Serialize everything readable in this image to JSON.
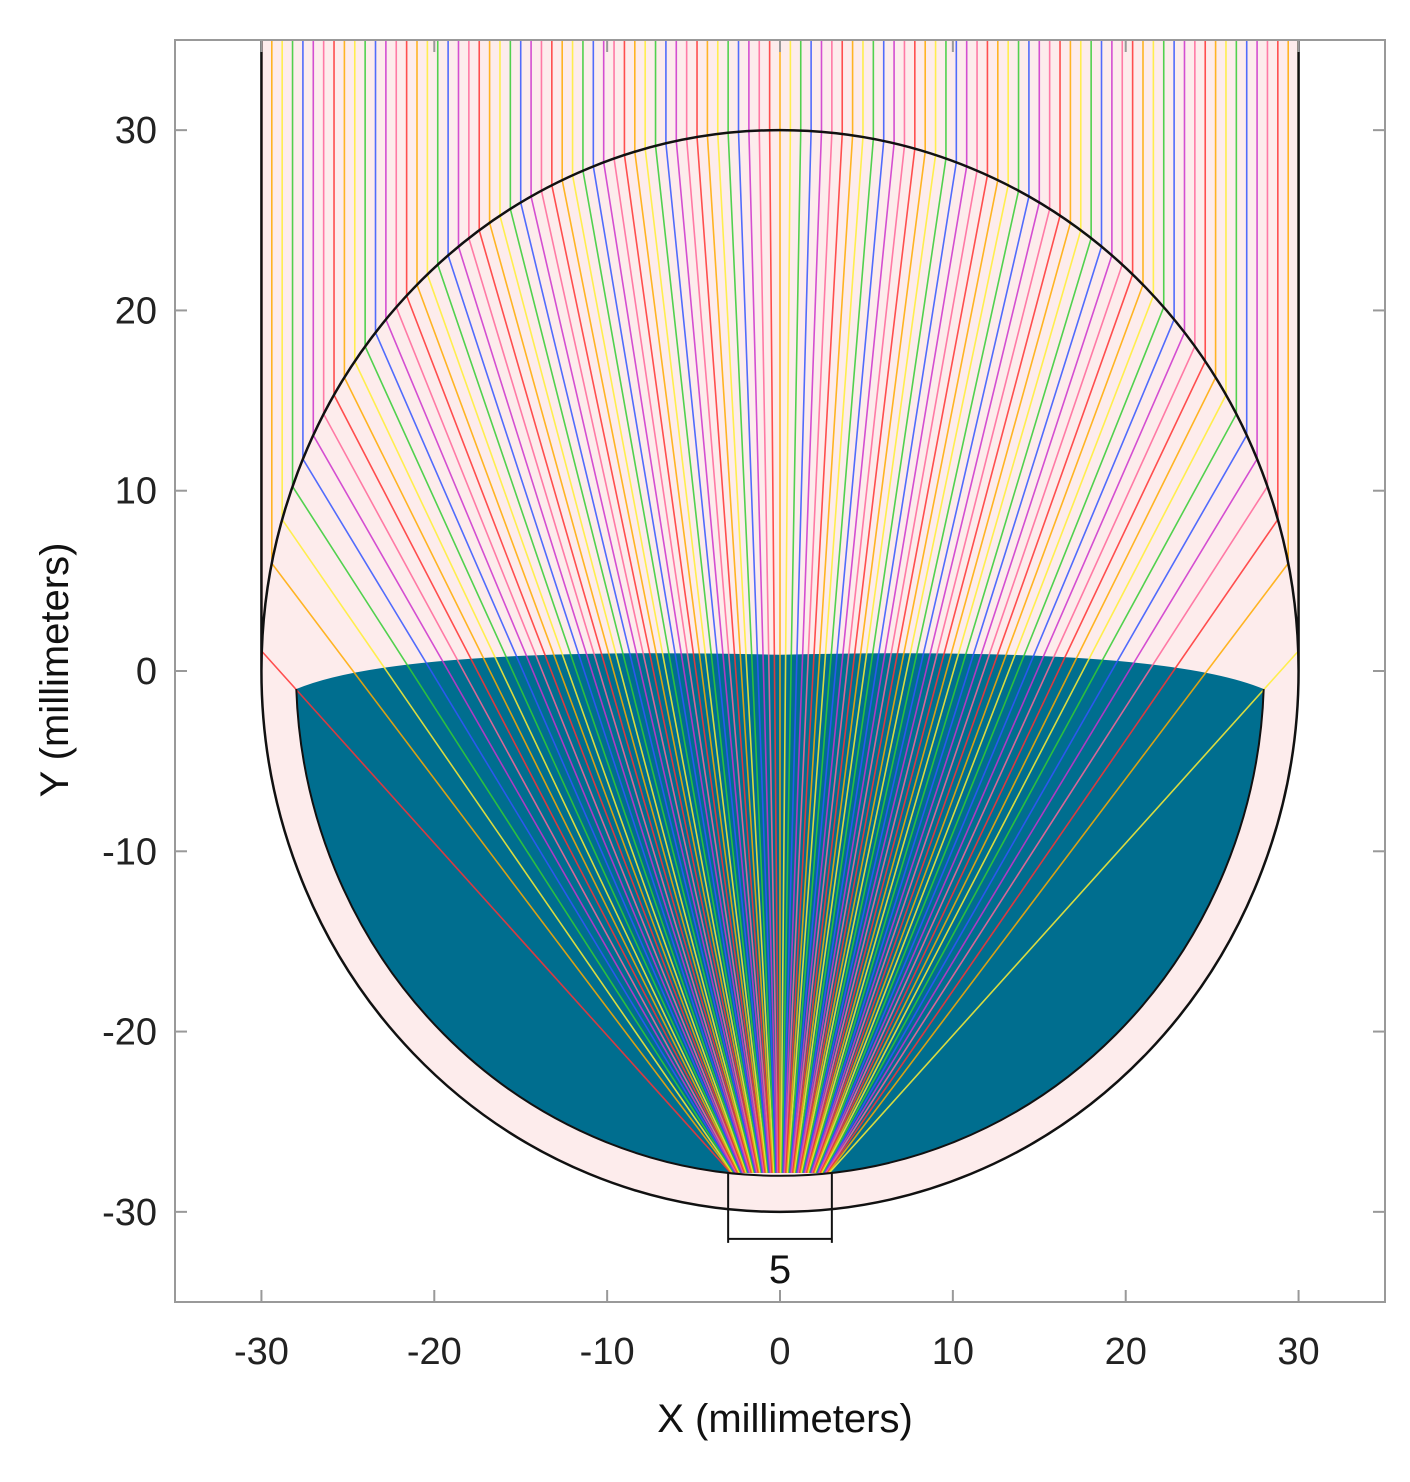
{
  "chart_data": {
    "type": "line",
    "title": "",
    "xlabel": "X (millimeters)",
    "ylabel": "Y (millimeters)",
    "xlim": [
      -35,
      35
    ],
    "ylim": [
      -35,
      35
    ],
    "x_ticks": [
      -30,
      -20,
      -10,
      0,
      10,
      20,
      30
    ],
    "y_ticks": [
      -30,
      -20,
      -10,
      0,
      10,
      20,
      30
    ],
    "x_tick_labels": [
      "-30",
      "-20",
      "-10",
      "0",
      "10",
      "20",
      "30"
    ],
    "y_tick_labels": [
      "-30",
      "-20",
      "-10",
      "0",
      "10",
      "20",
      "30"
    ],
    "grid": false,
    "annotations": [
      {
        "text": "5",
        "x_from": -3,
        "x_to": 3,
        "y": -31.5
      }
    ],
    "geometry": {
      "outer_circle": {
        "center": [
          0,
          0
        ],
        "radius": 30
      },
      "inner_shell_radius": 28,
      "aperture_half_width": 3,
      "dark_region_top_y": 0.8
    },
    "rays": {
      "x_start": -30,
      "x_end": 30,
      "spacing": 0.6,
      "y_top": 35,
      "colors": [
        "#ff3333",
        "#ffaa00",
        "#ffee33",
        "#33cc33",
        "#3355ff",
        "#cc33cc",
        "#ff6699"
      ]
    },
    "colors": {
      "outline": "#111111",
      "shell_fill": "#fdecec",
      "dark_region": "#006e8f",
      "axis_frame": "#999999"
    }
  }
}
